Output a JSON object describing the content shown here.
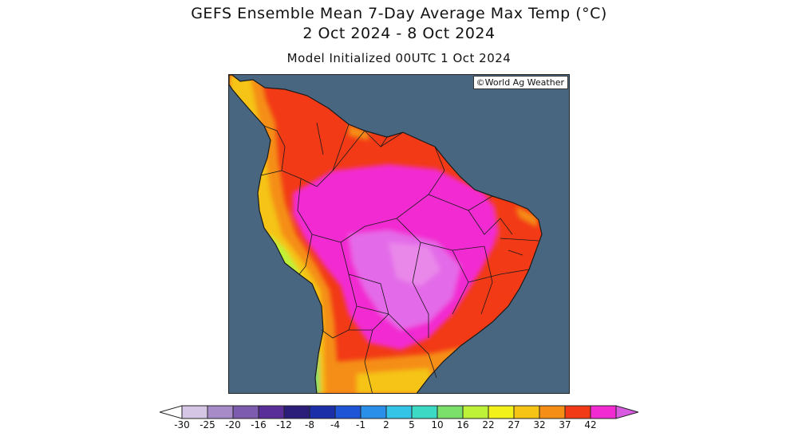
{
  "header": {
    "title_line1": "GEFS Ensemble Mean 7-Day Average Max Temp (°C)",
    "title_line2": "2 Oct 2024 - 8 Oct 2024",
    "subtitle": "Model Initialized 00UTC 1 Oct 2024"
  },
  "map": {
    "credit": "©World Ag Weather",
    "ocean_color": "#496681",
    "region": "South America (northern portion)"
  },
  "colorbar": {
    "labels": [
      "-30",
      "-25",
      "-20",
      "-16",
      "-12",
      "-8",
      "-4",
      "-1",
      "2",
      "5",
      "10",
      "16",
      "22",
      "27",
      "32",
      "37",
      "42"
    ],
    "colors": [
      "#d6c6e6",
      "#a78ac8",
      "#7d5cb0",
      "#5a2e98",
      "#2b1e7a",
      "#1a2fa8",
      "#1e55d6",
      "#2a8fe8",
      "#34c4e8",
      "#3cd9c4",
      "#7ae06a",
      "#bdf238",
      "#f2f21a",
      "#f5c414",
      "#f58e14",
      "#f23a16",
      "#f22ad2"
    ],
    "underflow_color": "#ffffff",
    "overflow_color": "#d85ae0"
  }
}
